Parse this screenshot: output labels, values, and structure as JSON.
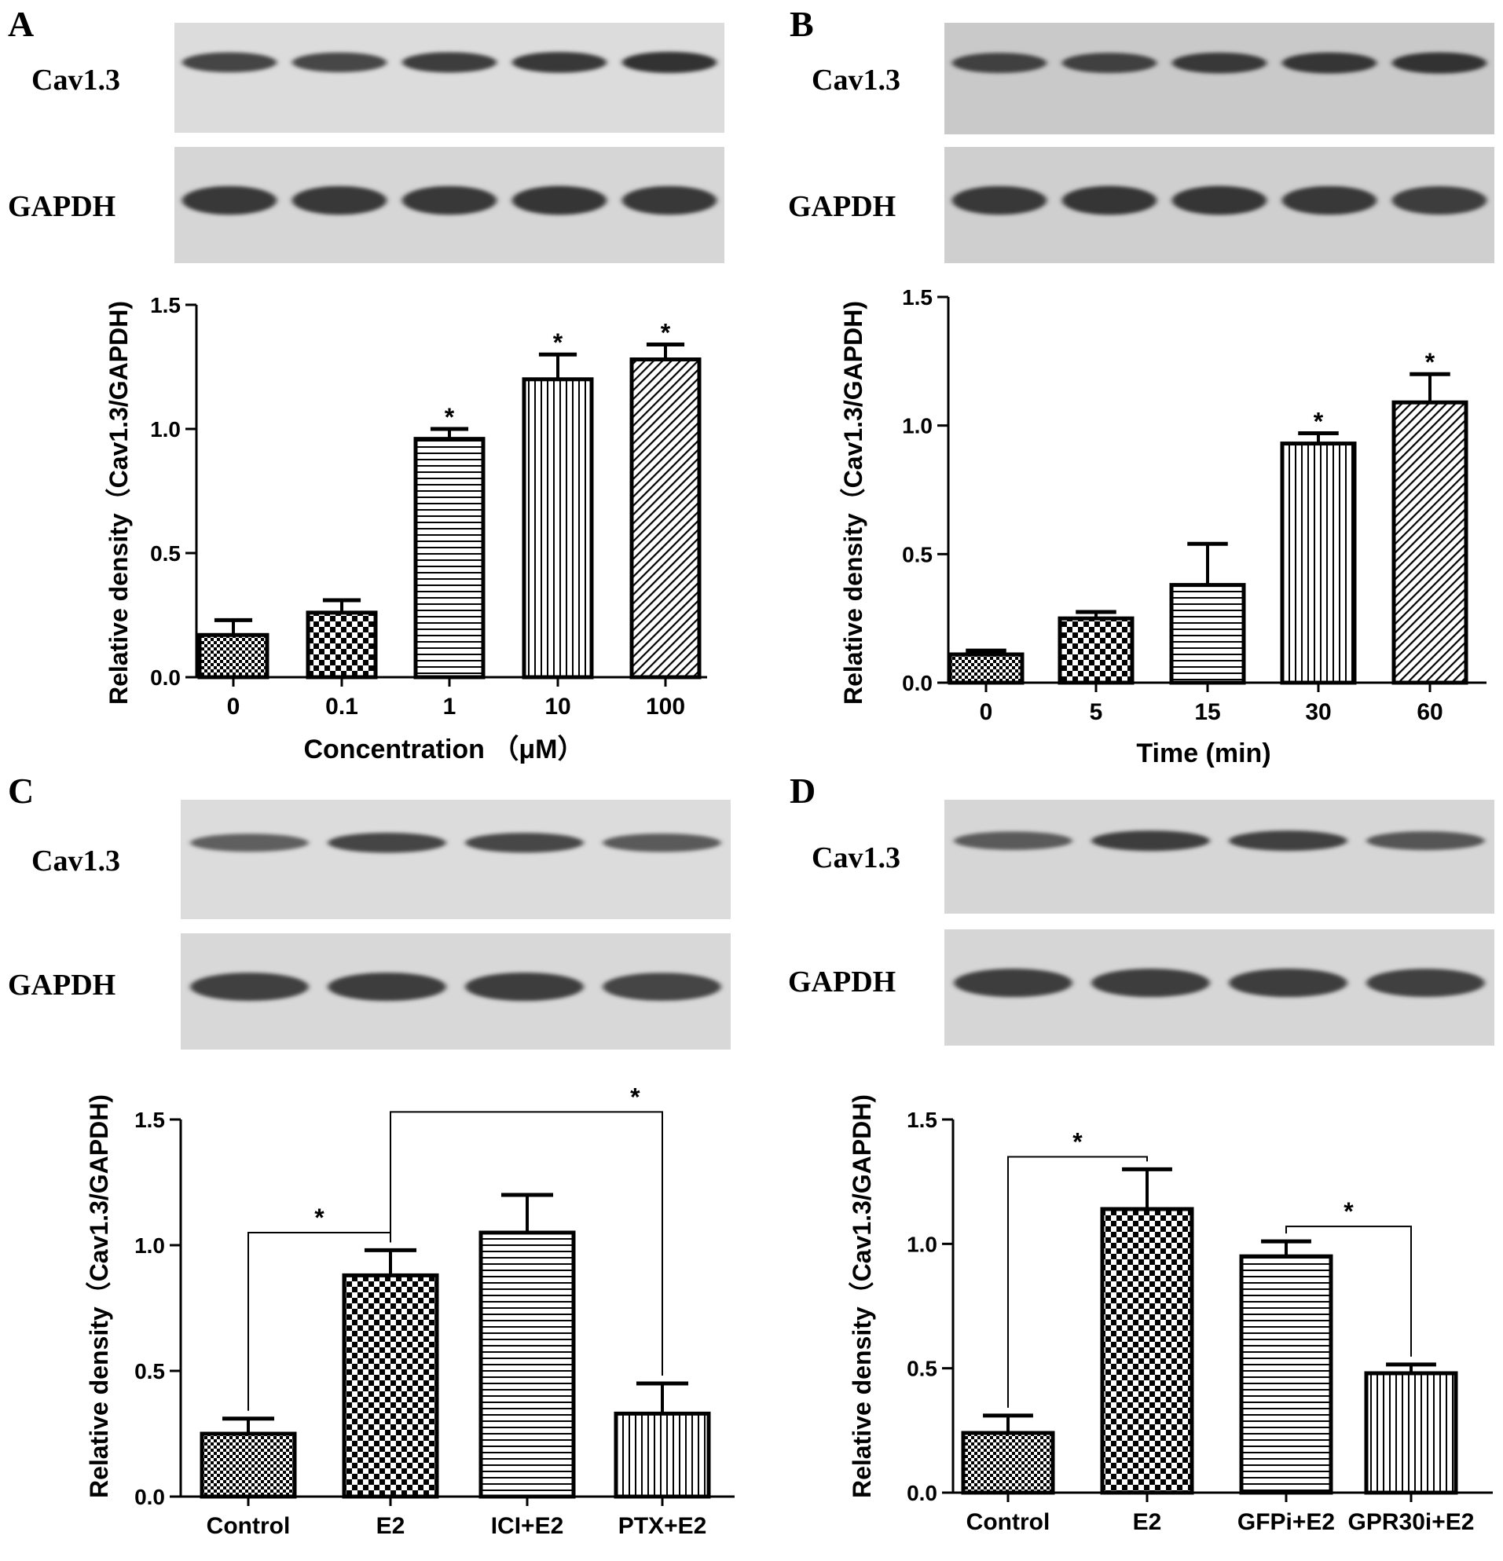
{
  "blot_labels": {
    "cav": "Cav1.3",
    "gapdh": "GAPDH"
  },
  "chart_data": [
    {
      "panel": "A",
      "type": "bar",
      "categories": [
        "0",
        "0.1",
        "1",
        "10",
        "100"
      ],
      "values": [
        0.17,
        0.26,
        0.96,
        1.2,
        1.28
      ],
      "errors": [
        0.06,
        0.05,
        0.04,
        0.1,
        0.06
      ],
      "significance": [
        "",
        "",
        "*",
        "*",
        "*"
      ],
      "comparisons": [],
      "xlabel": "Concentration （μM）",
      "ylabel": "Relative density（Cav1.3/GAPDH)",
      "ylim": [
        0,
        1.5
      ],
      "yticks": [
        "0.0",
        "0.5",
        "1.0",
        "1.5"
      ],
      "patterns": [
        "fine-checker",
        "checker",
        "hlines",
        "vlines",
        "diag"
      ],
      "blot": {
        "cav_levels": [
          0.75,
          0.72,
          0.8,
          0.85,
          0.9
        ],
        "gapdh_levels": [
          0.85,
          0.85,
          0.85,
          0.88,
          0.85
        ]
      }
    },
    {
      "panel": "B",
      "type": "bar",
      "categories": [
        "0",
        "5",
        "15",
        "30",
        "60"
      ],
      "values": [
        0.11,
        0.25,
        0.38,
        0.93,
        1.09
      ],
      "errors": [
        0.015,
        0.025,
        0.16,
        0.04,
        0.11
      ],
      "significance": [
        "",
        "",
        "",
        "*",
        "*"
      ],
      "comparisons": [],
      "xlabel": "Time (min)",
      "ylabel": "Relative density（Cav1.3/GAPDH)",
      "ylim": [
        0,
        1.5
      ],
      "yticks": [
        "0.0",
        "0.5",
        "1.0",
        "1.5"
      ],
      "patterns": [
        "fine-checker",
        "checker",
        "hlines",
        "vlines",
        "diag"
      ],
      "blot": {
        "cav_levels": [
          0.78,
          0.78,
          0.85,
          0.88,
          0.9
        ],
        "gapdh_levels": [
          0.85,
          0.88,
          0.88,
          0.85,
          0.82
        ]
      }
    },
    {
      "panel": "C",
      "type": "bar",
      "categories": [
        "Control",
        "E2",
        "ICI+E2",
        "PTX+E2"
      ],
      "values": [
        0.25,
        0.88,
        1.05,
        0.33
      ],
      "errors": [
        0.06,
        0.1,
        0.15,
        0.12
      ],
      "significance": [
        "",
        "",
        "",
        ""
      ],
      "comparisons": [
        {
          "from": 0,
          "to": 1,
          "label": "*",
          "y": 1.05
        },
        {
          "from": 1,
          "to": 3,
          "label": "*",
          "y": 1.53
        }
      ],
      "xlabel": "",
      "ylabel": "Relative density（Cav1.3/GAPDH)",
      "ylim": [
        0,
        1.5
      ],
      "yticks": [
        "0.0",
        "0.5",
        "1.0",
        "1.5"
      ],
      "patterns": [
        "fine-checker",
        "checker",
        "hlines",
        "vlines"
      ],
      "blot": {
        "cav_levels": [
          0.5,
          0.75,
          0.72,
          0.55
        ],
        "gapdh_levels": [
          0.78,
          0.8,
          0.82,
          0.75
        ]
      }
    },
    {
      "panel": "D",
      "type": "bar",
      "categories": [
        "Control",
        "E2",
        "GFPi+E2",
        "GPR30i+E2"
      ],
      "values": [
        0.24,
        1.14,
        0.95,
        0.48
      ],
      "errors": [
        0.07,
        0.16,
        0.06,
        0.035
      ],
      "significance": [
        "",
        "",
        "",
        ""
      ],
      "comparisons": [
        {
          "from": 0,
          "to": 1,
          "label": "*",
          "y": 1.35
        },
        {
          "from": 2,
          "to": 3,
          "label": "*",
          "y": 1.07
        }
      ],
      "xlabel": "",
      "ylabel": "Relative density（Cav1.3/GAPDH)",
      "ylim": [
        0,
        1.5
      ],
      "yticks": [
        "0.0",
        "0.5",
        "1.0",
        "1.5"
      ],
      "patterns": [
        "fine-checker",
        "checker",
        "hlines",
        "vlines"
      ],
      "blot": {
        "cav_levels": [
          0.55,
          0.8,
          0.78,
          0.6
        ],
        "gapdh_levels": [
          0.82,
          0.82,
          0.82,
          0.78
        ]
      }
    }
  ]
}
